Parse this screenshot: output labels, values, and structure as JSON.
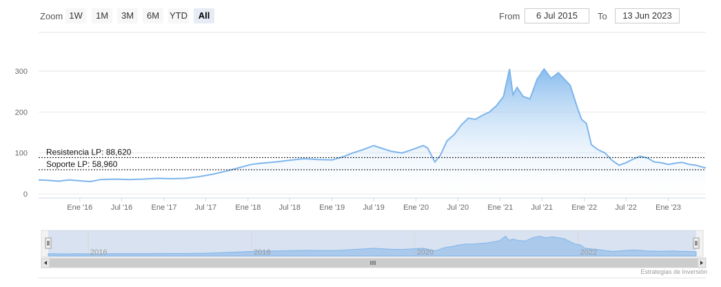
{
  "toolbar": {
    "zoom_label": "Zoom",
    "buttons": [
      {
        "label": "1W",
        "active": false
      },
      {
        "label": "1M",
        "active": false
      },
      {
        "label": "3M",
        "active": false
      },
      {
        "label": "6M",
        "active": false
      },
      {
        "label": "YTD",
        "active": false
      },
      {
        "label": "All",
        "active": true
      }
    ],
    "from_label": "From",
    "from_value": "6 Jul 2015",
    "to_label": "To",
    "to_value": "13 Jun 2023"
  },
  "credits": "Estrategias de Inversión",
  "colors": {
    "line": "#7cb5ec",
    "area_top": "#7cb5ec",
    "area_bottom": "#ffffff",
    "navigator_fill": "#cfdbef",
    "grid": "#e6e6e6"
  },
  "chart_data": {
    "type": "area",
    "title": "",
    "xlabel": "",
    "ylabel": "",
    "x_range": [
      "2015-07-06",
      "2023-06-13"
    ],
    "ylim": [
      0,
      320
    ],
    "y_ticks": [
      "0",
      "100",
      "200",
      "300"
    ],
    "x_ticks": [
      {
        "label": "Ene '16",
        "date": "2016-01-01"
      },
      {
        "label": "Jul '16",
        "date": "2016-07-01"
      },
      {
        "label": "Ene '17",
        "date": "2017-01-01"
      },
      {
        "label": "Jul '17",
        "date": "2017-07-01"
      },
      {
        "label": "Ene '18",
        "date": "2018-01-01"
      },
      {
        "label": "Jul '18",
        "date": "2018-07-01"
      },
      {
        "label": "Ene '19",
        "date": "2019-01-01"
      },
      {
        "label": "Jul '19",
        "date": "2019-07-01"
      },
      {
        "label": "Ene '20",
        "date": "2020-01-01"
      },
      {
        "label": "Jul '20",
        "date": "2020-07-01"
      },
      {
        "label": "Ene '21",
        "date": "2021-01-01"
      },
      {
        "label": "Jul '21",
        "date": "2021-07-01"
      },
      {
        "label": "Ene '22",
        "date": "2022-01-01"
      },
      {
        "label": "Jul '22",
        "date": "2022-07-01"
      },
      {
        "label": "Ene '23",
        "date": "2023-01-01"
      }
    ],
    "navigator_ticks": [
      {
        "label": "2016",
        "date": "2016-01-01"
      },
      {
        "label": "2018",
        "date": "2018-01-01"
      },
      {
        "label": "2020",
        "date": "2020-01-01"
      },
      {
        "label": "2022",
        "date": "2022-01-01"
      }
    ],
    "plot_lines": [
      {
        "label": "Resistencia LP: 88,620",
        "value": 88.62
      },
      {
        "label": "Soporte LP: 58,960",
        "value": 58.96
      }
    ],
    "series": [
      {
        "points": [
          [
            "2015-07-06",
            34
          ],
          [
            "2015-08-15",
            33
          ],
          [
            "2015-10-01",
            31
          ],
          [
            "2015-11-15",
            34
          ],
          [
            "2016-01-01",
            32
          ],
          [
            "2016-02-15",
            30
          ],
          [
            "2016-04-01",
            35
          ],
          [
            "2016-06-01",
            36
          ],
          [
            "2016-08-01",
            35
          ],
          [
            "2016-10-01",
            36
          ],
          [
            "2016-12-01",
            38
          ],
          [
            "2017-02-01",
            37
          ],
          [
            "2017-04-01",
            38
          ],
          [
            "2017-06-01",
            42
          ],
          [
            "2017-08-01",
            48
          ],
          [
            "2017-10-01",
            56
          ],
          [
            "2017-12-01",
            65
          ],
          [
            "2018-01-15",
            72
          ],
          [
            "2018-03-01",
            75
          ],
          [
            "2018-05-01",
            78
          ],
          [
            "2018-07-01",
            82
          ],
          [
            "2018-09-01",
            86
          ],
          [
            "2018-11-01",
            84
          ],
          [
            "2019-01-01",
            83
          ],
          [
            "2019-02-15",
            90
          ],
          [
            "2019-04-01",
            100
          ],
          [
            "2019-05-15",
            108
          ],
          [
            "2019-07-01",
            118
          ],
          [
            "2019-08-01",
            112
          ],
          [
            "2019-09-15",
            104
          ],
          [
            "2019-11-01",
            100
          ],
          [
            "2019-12-15",
            108
          ],
          [
            "2020-02-01",
            118
          ],
          [
            "2020-02-20",
            112
          ],
          [
            "2020-03-23",
            78
          ],
          [
            "2020-04-15",
            94
          ],
          [
            "2020-05-15",
            130
          ],
          [
            "2020-06-15",
            145
          ],
          [
            "2020-07-15",
            168
          ],
          [
            "2020-08-15",
            185
          ],
          [
            "2020-09-15",
            182
          ],
          [
            "2020-10-15",
            192
          ],
          [
            "2020-11-15",
            200
          ],
          [
            "2020-12-15",
            215
          ],
          [
            "2021-01-15",
            238
          ],
          [
            "2021-02-10",
            305
          ],
          [
            "2021-02-25",
            242
          ],
          [
            "2021-03-15",
            260
          ],
          [
            "2021-04-10",
            238
          ],
          [
            "2021-05-10",
            232
          ],
          [
            "2021-06-10",
            280
          ],
          [
            "2021-07-10",
            305
          ],
          [
            "2021-08-10",
            282
          ],
          [
            "2021-09-10",
            296
          ],
          [
            "2021-10-10",
            278
          ],
          [
            "2021-11-01",
            265
          ],
          [
            "2021-12-01",
            212
          ],
          [
            "2021-12-20",
            182
          ],
          [
            "2022-01-10",
            172
          ],
          [
            "2022-02-01",
            120
          ],
          [
            "2022-03-01",
            108
          ],
          [
            "2022-04-01",
            100
          ],
          [
            "2022-05-01",
            82
          ],
          [
            "2022-06-01",
            70
          ],
          [
            "2022-07-01",
            76
          ],
          [
            "2022-08-01",
            85
          ],
          [
            "2022-09-01",
            92
          ],
          [
            "2022-10-01",
            88
          ],
          [
            "2022-11-01",
            78
          ],
          [
            "2022-12-01",
            76
          ],
          [
            "2023-01-01",
            72
          ],
          [
            "2023-02-01",
            75
          ],
          [
            "2023-03-01",
            77
          ],
          [
            "2023-04-01",
            72
          ],
          [
            "2023-05-01",
            70
          ],
          [
            "2023-06-13",
            63
          ]
        ]
      }
    ]
  }
}
